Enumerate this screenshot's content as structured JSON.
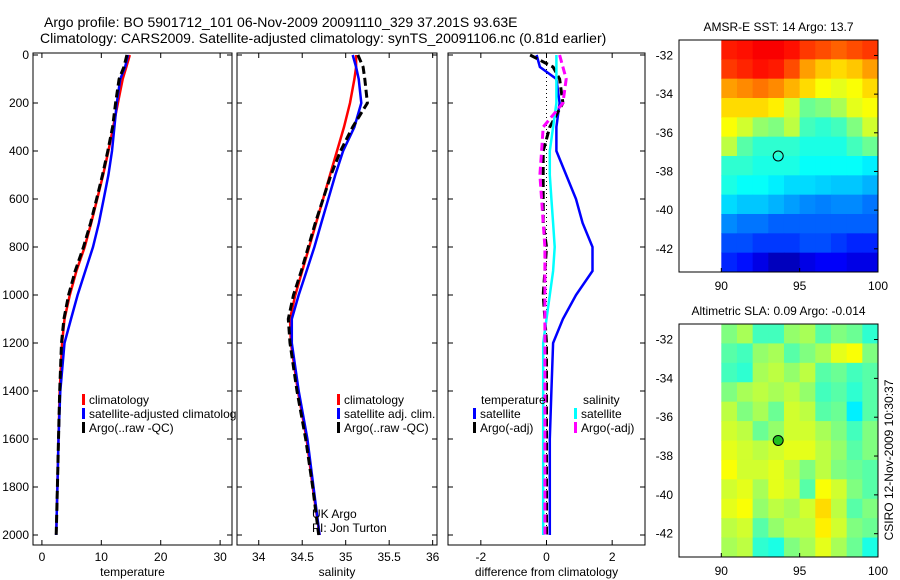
{
  "title_line1": "Argo profile: BO 5901712_101 06-Nov-2009 20091110_329 37.201S 93.63E",
  "title_line2": "Climatology: CARS2009. Satellite-adjusted climatology: synTS_20091106.nc (0.81d earlier)",
  "credit": "CSIRO 12-Nov-2009 10:30:37",
  "colors": {
    "climatology": "#ff0000",
    "satellite": "#0000ff",
    "argo": "#000000",
    "sal_satellite": "#00ffff",
    "sal_argo": "#ff00ff"
  },
  "chart_data": [
    {
      "type": "line",
      "xlabel": "temperature",
      "xlim": [
        -1.5,
        32
      ],
      "ylim": [
        0,
        2050
      ],
      "xticks": [
        "0",
        "10",
        "20",
        "30"
      ],
      "xtick_values": [
        0,
        10,
        20,
        30
      ],
      "yticks": [
        "0",
        "200",
        "400",
        "600",
        "800",
        "1000",
        "1200",
        "1400",
        "1600",
        "1800",
        "2000"
      ],
      "ytick_values": [
        0,
        200,
        400,
        600,
        800,
        1000,
        1200,
        1400,
        1600,
        1800,
        2000
      ],
      "depth": [
        0,
        50,
        100,
        200,
        300,
        400,
        500,
        600,
        700,
        800,
        900,
        1000,
        1100,
        1200,
        1400,
        1600,
        1800,
        2000
      ],
      "series": [
        {
          "name": "climatology",
          "color": "#ff0000",
          "dash": false,
          "values": [
            14.8,
            14.2,
            13.6,
            12.8,
            12.0,
            11.2,
            10.3,
            9.3,
            8.3,
            7.2,
            5.8,
            4.7,
            3.8,
            3.4,
            3.0,
            2.8,
            2.6,
            2.4
          ]
        },
        {
          "name": "satellite-adjusted climatology",
          "color": "#0000ff",
          "dash": false,
          "values": [
            14.5,
            14.0,
            13.2,
            12.6,
            12.2,
            11.8,
            11.2,
            10.4,
            9.6,
            8.6,
            7.3,
            6.0,
            4.9,
            3.8,
            3.1,
            2.8,
            2.6,
            2.4
          ]
        },
        {
          "name": "Argo(..raw -QC)",
          "color": "#000000",
          "dash": true,
          "values": [
            14.3,
            13.8,
            13.0,
            12.4,
            11.9,
            11.1,
            10.2,
            9.2,
            8.2,
            7.0,
            5.6,
            4.5,
            3.7,
            3.3,
            3.0,
            2.8,
            2.6,
            2.4
          ]
        }
      ],
      "legend": [
        "climatology",
        "satellite-adjusted climatolog",
        "Argo(..raw -QC)"
      ]
    },
    {
      "type": "line",
      "xlabel": "salinity",
      "xlim": [
        33.75,
        36.05
      ],
      "ylim": [
        0,
        2050
      ],
      "xticks": [
        "34",
        "34.5",
        "35",
        "35.5",
        "36"
      ],
      "xtick_values": [
        34,
        34.5,
        35,
        35.5,
        36
      ],
      "depth": [
        0,
        50,
        100,
        200,
        300,
        400,
        500,
        600,
        700,
        800,
        900,
        1000,
        1100,
        1200,
        1400,
        1600,
        1800,
        2000
      ],
      "series": [
        {
          "name": "climatology",
          "color": "#ff0000",
          "dash": false,
          "values": [
            35.12,
            35.12,
            35.1,
            35.05,
            34.98,
            34.9,
            34.82,
            34.74,
            34.66,
            34.58,
            34.5,
            34.42,
            34.36,
            34.37,
            34.45,
            34.55,
            34.62,
            34.7
          ]
        },
        {
          "name": "satellite adj. clim.",
          "color": "#0000ff",
          "dash": false,
          "values": [
            35.08,
            35.12,
            35.15,
            35.18,
            35.1,
            34.97,
            34.88,
            34.8,
            34.72,
            34.64,
            34.55,
            34.46,
            34.38,
            34.38,
            34.46,
            34.56,
            34.63,
            34.7
          ]
        },
        {
          "name": "Argo(..raw -QC)",
          "color": "#000000",
          "dash": true,
          "values": [
            35.14,
            35.2,
            35.22,
            35.25,
            35.08,
            34.94,
            34.83,
            34.74,
            34.65,
            34.57,
            34.49,
            34.4,
            34.34,
            34.36,
            34.44,
            34.54,
            34.62,
            34.69
          ]
        }
      ],
      "legend": [
        "climatology",
        "satellite adj. clim.",
        "Argo(..raw -QC)"
      ],
      "annotation": [
        "UK Argo",
        "PI: Jon Turton"
      ]
    },
    {
      "type": "line",
      "xlabel": "difference from climatology",
      "xlim": [
        -3,
        3
      ],
      "ylim": [
        0,
        2050
      ],
      "xticks": [
        "-2",
        "0",
        "2"
      ],
      "xtick_values": [
        -2,
        0,
        2
      ],
      "depth": [
        0,
        50,
        100,
        200,
        300,
        400,
        500,
        600,
        700,
        800,
        900,
        1000,
        1100,
        1200,
        1400,
        1600,
        1800,
        2000
      ],
      "series": [
        {
          "name": "temperature satellite",
          "color": "#0000ff",
          "dash": false,
          "values": [
            -0.3,
            -0.2,
            0.3,
            0.4,
            0.3,
            0.3,
            0.6,
            0.9,
            1.1,
            1.4,
            1.4,
            0.9,
            0.5,
            0.2,
            0.15,
            0.1,
            0.1,
            0.1
          ]
        },
        {
          "name": "temperature Argo(-adj)",
          "color": "#000000",
          "dash": true,
          "values": [
            -0.5,
            0.2,
            0.4,
            0.5,
            0.1,
            -0.1,
            -0.1,
            -0.1,
            -0.1,
            0.0,
            -0.05,
            -0.1,
            -0.05,
            0.0,
            0.0,
            0.0,
            0.0,
            0.0
          ]
        },
        {
          "name": "salinity satellite",
          "color": "#00ffff",
          "dash": false,
          "values": [
            0.3,
            0.3,
            0.3,
            0.3,
            0.2,
            0.1,
            0.1,
            0.15,
            0.2,
            0.25,
            0.2,
            0.1,
            0.0,
            -0.1,
            -0.1,
            -0.1,
            -0.1,
            -0.1
          ]
        },
        {
          "name": "salinity Argo(-adj)",
          "color": "#ff00ff",
          "dash": true,
          "values": [
            0.4,
            0.5,
            0.6,
            0.5,
            -0.1,
            -0.15,
            -0.2,
            -0.15,
            -0.1,
            -0.05,
            -0.05,
            -0.05,
            -0.05,
            -0.05,
            -0.05,
            -0.05,
            -0.05,
            -0.05
          ]
        }
      ],
      "legend_headers": [
        "temperature",
        "salinity"
      ],
      "legend": [
        "satellite",
        "Argo(-adj)",
        "satellite",
        "Argo(-adj)"
      ]
    },
    {
      "type": "heatmap",
      "title": "AMSR-E SST: 14 Argo: 13.7",
      "xlim": [
        87.3,
        100
      ],
      "ylim": [
        -43.2,
        -31.2
      ],
      "xticks": [
        "90",
        "95",
        "100"
      ],
      "xtick_values": [
        90,
        95,
        100
      ],
      "yticks": [
        "-32",
        "-34",
        "-36",
        "-38",
        "-40",
        "-42"
      ],
      "ytick_values": [
        -32,
        -34,
        -36,
        -38,
        -40,
        -42
      ],
      "data_lon": [
        90,
        100
      ],
      "data_lat": [
        -43.2,
        -31.2
      ],
      "marker": {
        "lon": 93.63,
        "lat": -37.2
      },
      "grid": [
        [
          0.85,
          0.86,
          0.88,
          0.88,
          0.86,
          0.82,
          0.8,
          0.78,
          0.8,
          0.82
        ],
        [
          0.82,
          0.84,
          0.86,
          0.85,
          0.8,
          0.72,
          0.68,
          0.66,
          0.68,
          0.72
        ],
        [
          0.72,
          0.74,
          0.76,
          0.74,
          0.7,
          0.66,
          0.62,
          0.6,
          0.62,
          0.66
        ],
        [
          0.66,
          0.66,
          0.66,
          0.64,
          0.58,
          0.48,
          0.5,
          0.54,
          0.6,
          0.62
        ],
        [
          0.62,
          0.58,
          0.52,
          0.5,
          0.56,
          0.44,
          0.42,
          0.44,
          0.5,
          0.58
        ],
        [
          0.56,
          0.46,
          0.42,
          0.42,
          0.42,
          0.4,
          0.4,
          0.4,
          0.44,
          0.48
        ],
        [
          0.42,
          0.42,
          0.4,
          0.4,
          0.4,
          0.38,
          0.38,
          0.38,
          0.38,
          0.36
        ],
        [
          0.4,
          0.38,
          0.38,
          0.36,
          0.34,
          0.34,
          0.33,
          0.32,
          0.32,
          0.3
        ],
        [
          0.34,
          0.32,
          0.32,
          0.3,
          0.28,
          0.26,
          0.25,
          0.26,
          0.26,
          0.24
        ],
        [
          0.26,
          0.24,
          0.24,
          0.22,
          0.22,
          0.22,
          0.22,
          0.22,
          0.22,
          0.22
        ],
        [
          0.2,
          0.2,
          0.18,
          0.18,
          0.18,
          0.2,
          0.2,
          0.18,
          0.16,
          0.16
        ],
        [
          0.16,
          0.14,
          0.1,
          0.06,
          0.06,
          0.1,
          0.12,
          0.12,
          0.1,
          0.1
        ]
      ]
    },
    {
      "type": "heatmap",
      "title": "Altimetric SLA: 0.09 Argo: -0.014",
      "xlim": [
        87.3,
        100
      ],
      "ylim": [
        -43.2,
        -31.2
      ],
      "xticks": [
        "90",
        "95",
        "100"
      ],
      "xtick_values": [
        90,
        95,
        100
      ],
      "yticks": [
        "-32",
        "-34",
        "-36",
        "-38",
        "-40",
        "-42"
      ],
      "ytick_values": [
        -32,
        -34,
        -36,
        -38,
        -40,
        -42
      ],
      "data_lon": [
        90,
        100
      ],
      "data_lat": [
        -43.2,
        -31.2
      ],
      "marker": {
        "lon": 93.63,
        "lat": -37.2
      },
      "grid": [
        [
          0.5,
          0.54,
          0.44,
          0.44,
          0.52,
          0.54,
          0.46,
          0.5,
          0.48,
          0.42
        ],
        [
          0.46,
          0.44,
          0.52,
          0.54,
          0.46,
          0.5,
          0.54,
          0.6,
          0.62,
          0.5
        ],
        [
          0.44,
          0.42,
          0.54,
          0.56,
          0.52,
          0.56,
          0.46,
          0.48,
          0.44,
          0.46
        ],
        [
          0.5,
          0.54,
          0.56,
          0.54,
          0.56,
          0.52,
          0.44,
          0.46,
          0.42,
          0.46
        ],
        [
          0.56,
          0.5,
          0.54,
          0.48,
          0.58,
          0.56,
          0.46,
          0.48,
          0.36,
          0.46
        ],
        [
          0.58,
          0.56,
          0.48,
          0.52,
          0.58,
          0.58,
          0.54,
          0.5,
          0.44,
          0.5
        ],
        [
          0.6,
          0.58,
          0.56,
          0.58,
          0.6,
          0.6,
          0.56,
          0.52,
          0.46,
          0.5
        ],
        [
          0.62,
          0.58,
          0.58,
          0.6,
          0.56,
          0.5,
          0.56,
          0.5,
          0.48,
          0.46
        ],
        [
          0.58,
          0.6,
          0.54,
          0.6,
          0.58,
          0.46,
          0.62,
          0.58,
          0.5,
          0.46
        ],
        [
          0.6,
          0.62,
          0.52,
          0.56,
          0.54,
          0.58,
          0.66,
          0.56,
          0.46,
          0.5
        ],
        [
          0.56,
          0.58,
          0.46,
          0.52,
          0.56,
          0.56,
          0.64,
          0.58,
          0.5,
          0.48
        ],
        [
          0.54,
          0.56,
          0.42,
          0.4,
          0.5,
          0.54,
          0.6,
          0.54,
          0.48,
          0.4
        ]
      ]
    }
  ]
}
